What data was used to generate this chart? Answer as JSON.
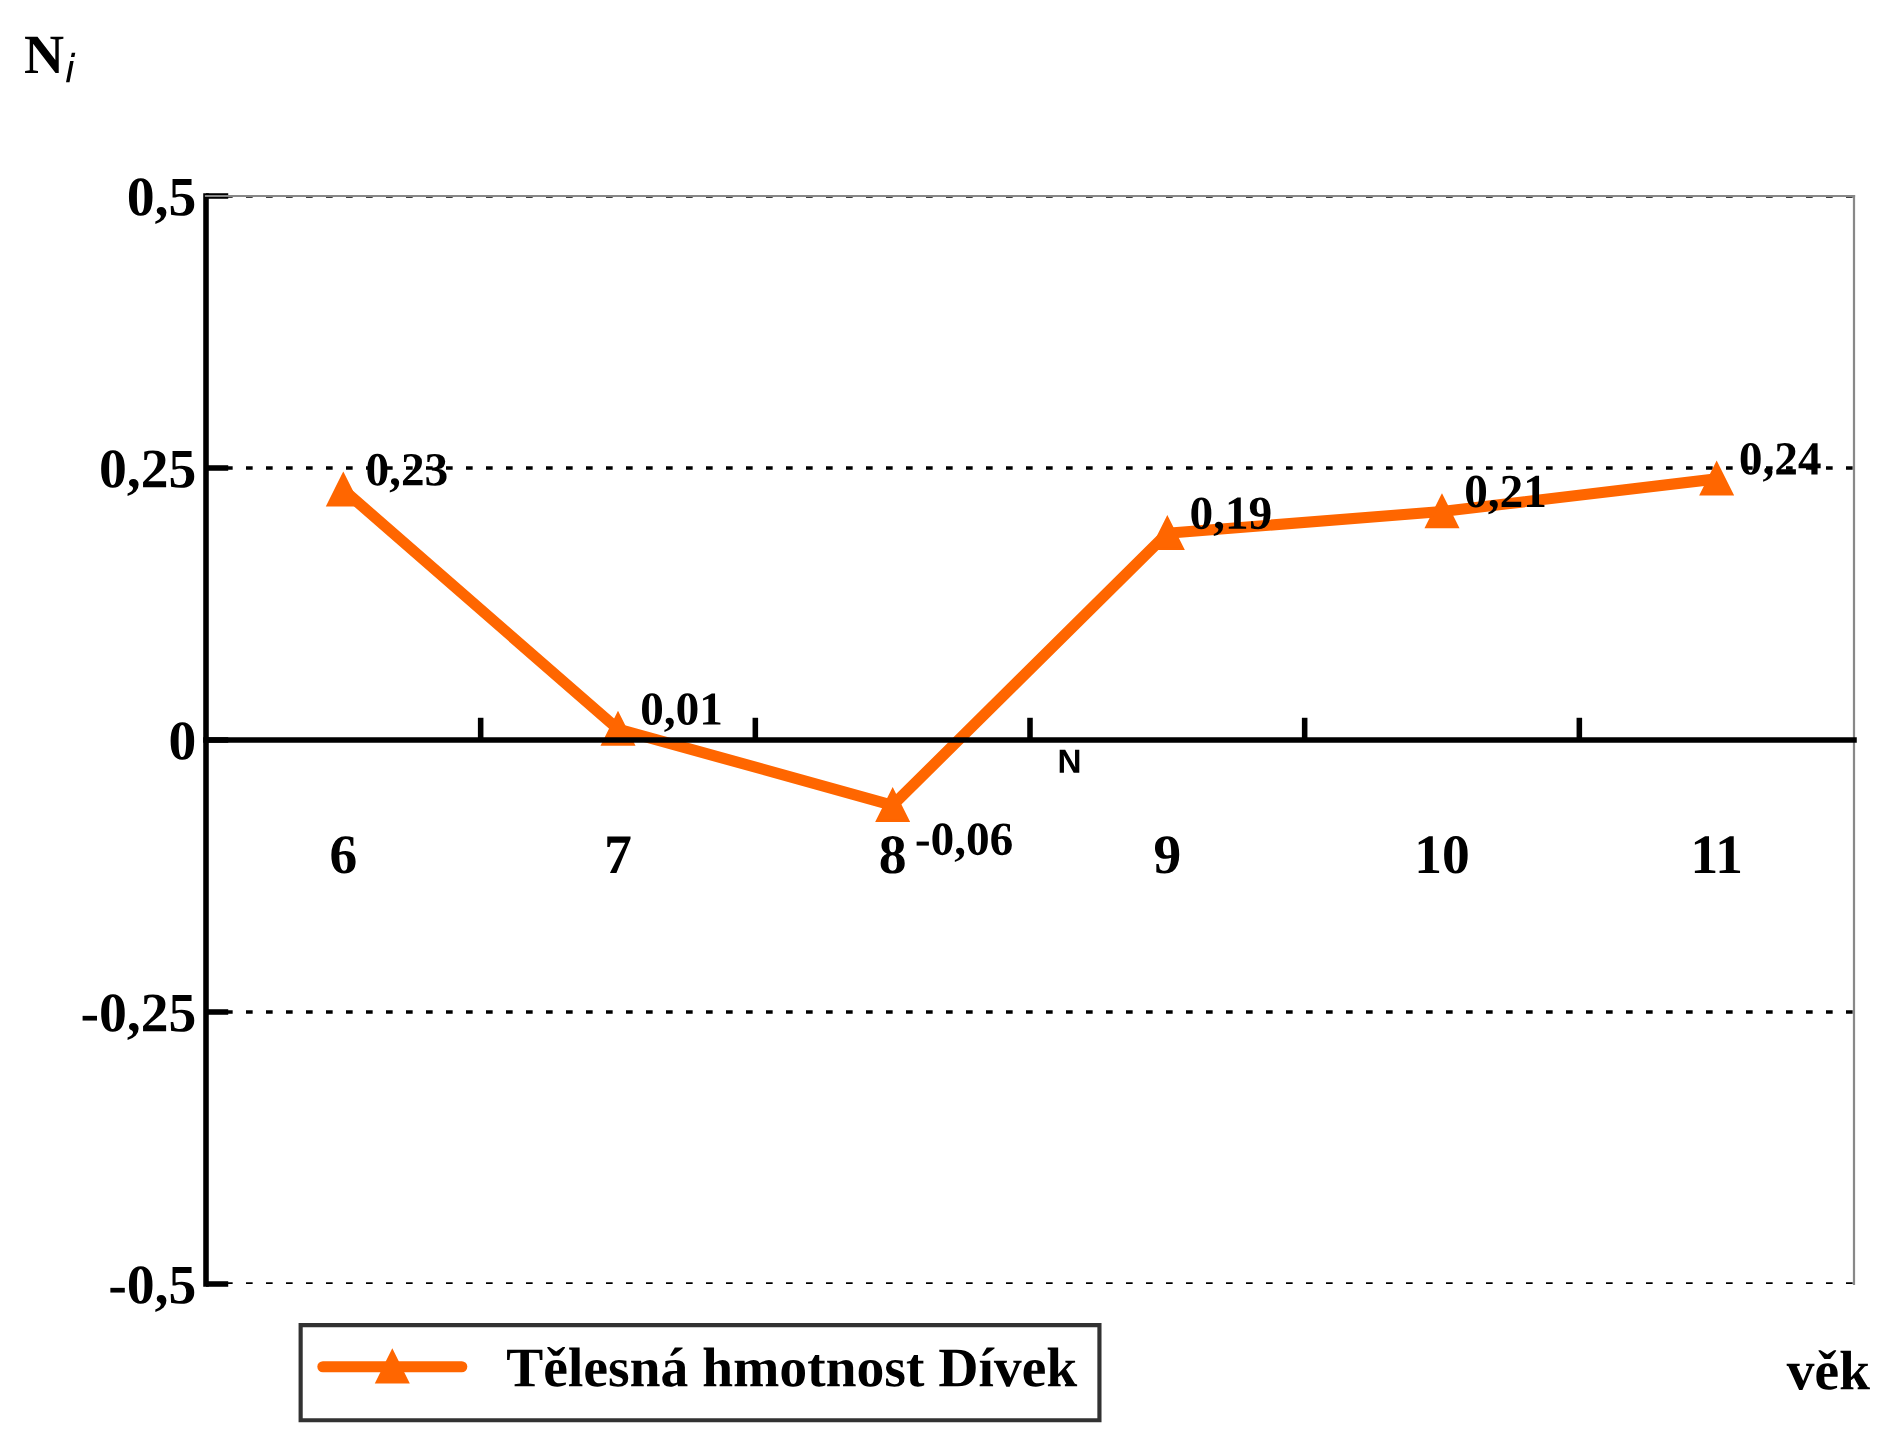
{
  "chart_data": {
    "type": "line",
    "ylabel": "N$_{i}$",
    "xlabel": "věk",
    "categories": [
      "6",
      "7",
      "8",
      "9",
      "10",
      "11"
    ],
    "series": [
      {
        "name": "Tělesná hmotnost Dívek",
        "color": "#ff6600",
        "values": [
          0.23,
          0.01,
          -0.06,
          0.19,
          0.21,
          0.24
        ],
        "value_labels": [
          "0,23",
          "0,01",
          "-0,06",
          "0,19",
          "0,21",
          "0,24"
        ]
      }
    ],
    "ylim": [
      -0.5,
      0.5
    ],
    "yticks": [
      {
        "value": -0.5,
        "label": "-0,5"
      },
      {
        "value": -0.25,
        "label": "-0,25"
      },
      {
        "value": 0,
        "label": "0"
      },
      {
        "value": 0.25,
        "label": "0,25"
      },
      {
        "value": 0.5,
        "label": "0,5"
      }
    ],
    "grid": "y",
    "legend": "bottom",
    "marker": "triangle",
    "line_style": "solid",
    "annotations": [
      "N"
    ]
  }
}
